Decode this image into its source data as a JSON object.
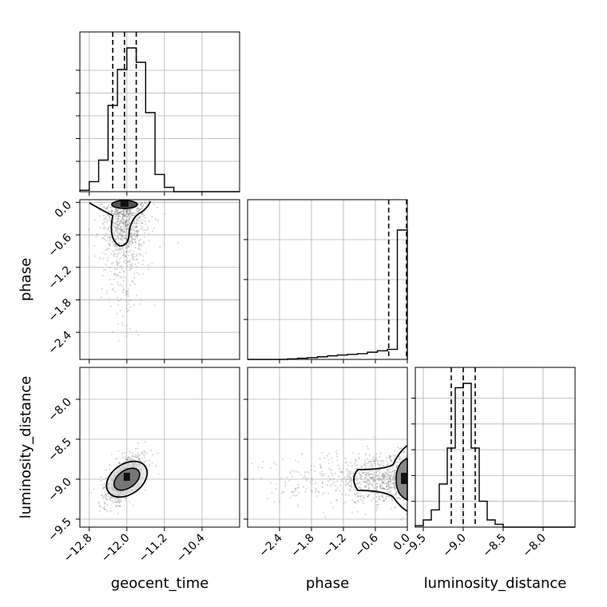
{
  "chart_data": {
    "type": "corner",
    "parameters": [
      "geocent_time",
      "phase",
      "luminosity_distance"
    ],
    "ticks": {
      "geocent_time": [
        "−12.8",
        "−12.0",
        "−11.2",
        "−10.4"
      ],
      "phase": [
        "−2.4",
        "−1.8",
        "−1.2",
        "−0.6",
        "0.0"
      ],
      "luminosity_distance": [
        "−9.5",
        "−9.0",
        "−8.5",
        "−8.0"
      ]
    },
    "quantiles": {
      "geocent_time": [
        -12.3,
        -12.05,
        -11.8
      ],
      "phase": [
        -0.35,
        0.0
      ],
      "luminosity_distance": [
        -9.15,
        -9.0,
        -8.85
      ]
    },
    "histograms": {
      "geocent_time": {
        "range": [
          -13.0,
          -9.6
        ],
        "counts": [
          0.01,
          0.07,
          0.22,
          0.6,
          0.85,
          1.0,
          0.9,
          0.55,
          0.12,
          0.03,
          0,
          0,
          0,
          0,
          0,
          0,
          0
        ]
      },
      "phase": {
        "range": [
          -3.0,
          0.0
        ],
        "counts": [
          0,
          0,
          0,
          0,
          0.004,
          0.008,
          0.012,
          0.018,
          0.025,
          0.03,
          0.035,
          0.04,
          0.05,
          0.06,
          0.07,
          0.9
        ]
      },
      "luminosity_distance": {
        "range": [
          -9.6,
          -7.6
        ],
        "counts": [
          0.01,
          0.05,
          0.12,
          0.3,
          0.55,
          0.97,
          1.0,
          0.55,
          0.18,
          0.05,
          0.02,
          0,
          0,
          0,
          0,
          0,
          0,
          0,
          0,
          0
        ]
      }
    },
    "panel_ranges": {
      "geocent_time": [
        -13.0,
        -9.6
      ],
      "phase": [
        -3.0,
        0.0
      ],
      "luminosity_distance_x": [
        -9.6,
        -7.6
      ],
      "luminosity_distance_y": [
        -9.6,
        -7.6
      ],
      "phase_y": [
        -2.9,
        0.05
      ]
    },
    "grid": true
  },
  "colors": {
    "line": "#000000",
    "grid": "#b0b0b0",
    "scatter": "#808080"
  }
}
